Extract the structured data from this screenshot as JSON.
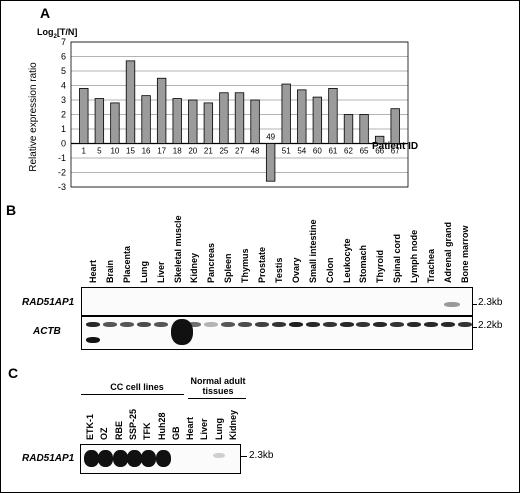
{
  "panels": {
    "a": "A",
    "b": "B",
    "c": "C"
  },
  "chart_data": {
    "type": "bar",
    "ylabel_prefix": "Log",
    "ylabel_sub": "2",
    "ylabel_suffix": "[T/N]",
    "ylabel": "Relative expression ratio",
    "xlabel": "Patient ID",
    "ylim": [
      -3,
      7
    ],
    "yticks": [
      "-3",
      "-2",
      "-1",
      "0",
      "1",
      "2",
      "3",
      "4",
      "5",
      "6",
      "7"
    ],
    "categories": [
      "1",
      "5",
      "10",
      "15",
      "16",
      "17",
      "18",
      "20",
      "21",
      "25",
      "27",
      "48",
      "49",
      "51",
      "54",
      "60",
      "61",
      "62",
      "65",
      "66",
      "67"
    ],
    "values": [
      3.8,
      3.1,
      2.8,
      5.7,
      3.3,
      4.5,
      3.1,
      3.0,
      2.8,
      3.5,
      3.5,
      3.0,
      -2.6,
      4.1,
      3.7,
      3.2,
      3.8,
      2.0,
      2.0,
      0.5,
      2.4
    ]
  },
  "panel_b": {
    "tissues": [
      "Heart",
      "Brain",
      "Placenta",
      "Lung",
      "Liver",
      "Skeletal muscle",
      "Kidney",
      "Pancreas",
      "Spleen",
      "Thymus",
      "Prostate",
      "Testis",
      "Ovary",
      "Small intestine",
      "Colon",
      "Leukocyte",
      "Stomach",
      "Thyroid",
      "Spinal cord",
      "Lymph node",
      "Trachea",
      "Adrenal grand",
      "Bone marrow"
    ],
    "row1_label": "RAD51AP1",
    "row1_size": "2.3kb",
    "row2_label": "ACTB",
    "row2_size": "2.2kb"
  },
  "panel_c": {
    "group1": "CC cell lines",
    "group2_line1": "Normal adult",
    "group2_line2": "tissues",
    "lanes": [
      "ETK-1",
      "OZ",
      "RBE",
      "SSP-25",
      "TFK",
      "Huh28",
      "GB",
      "Heart",
      "Liver",
      "Lung",
      "Kidney"
    ],
    "row_label": "RAD51AP1",
    "size": "2.3kb"
  }
}
